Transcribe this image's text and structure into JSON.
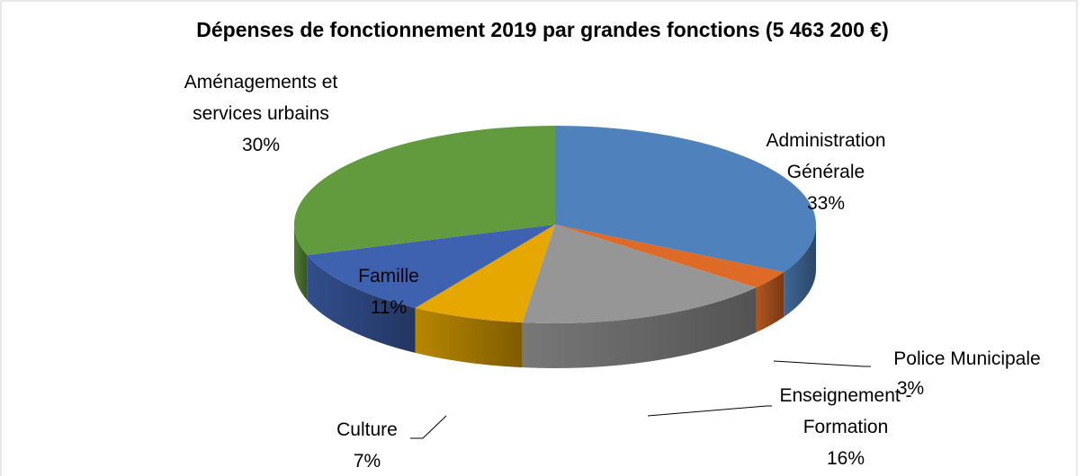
{
  "chart_data": {
    "type": "pie",
    "title": "Dépenses de fonctionnement 2019 par grandes fonctions (5 463 200 €)",
    "categories": [
      "Administration Générale",
      "Police Municipale",
      "Enseignement - Formation",
      "Culture",
      "Famille",
      "Aménagements et services urbains"
    ],
    "values": [
      33,
      3,
      16,
      7,
      11,
      30
    ],
    "value_labels": [
      "33%",
      "3%",
      "16%",
      "7%",
      "11%",
      "30%"
    ],
    "colors": [
      "#4f81bd",
      "#dd6a26",
      "#969696",
      "#e6a800",
      "#3f62b0",
      "#629a3e"
    ]
  }
}
